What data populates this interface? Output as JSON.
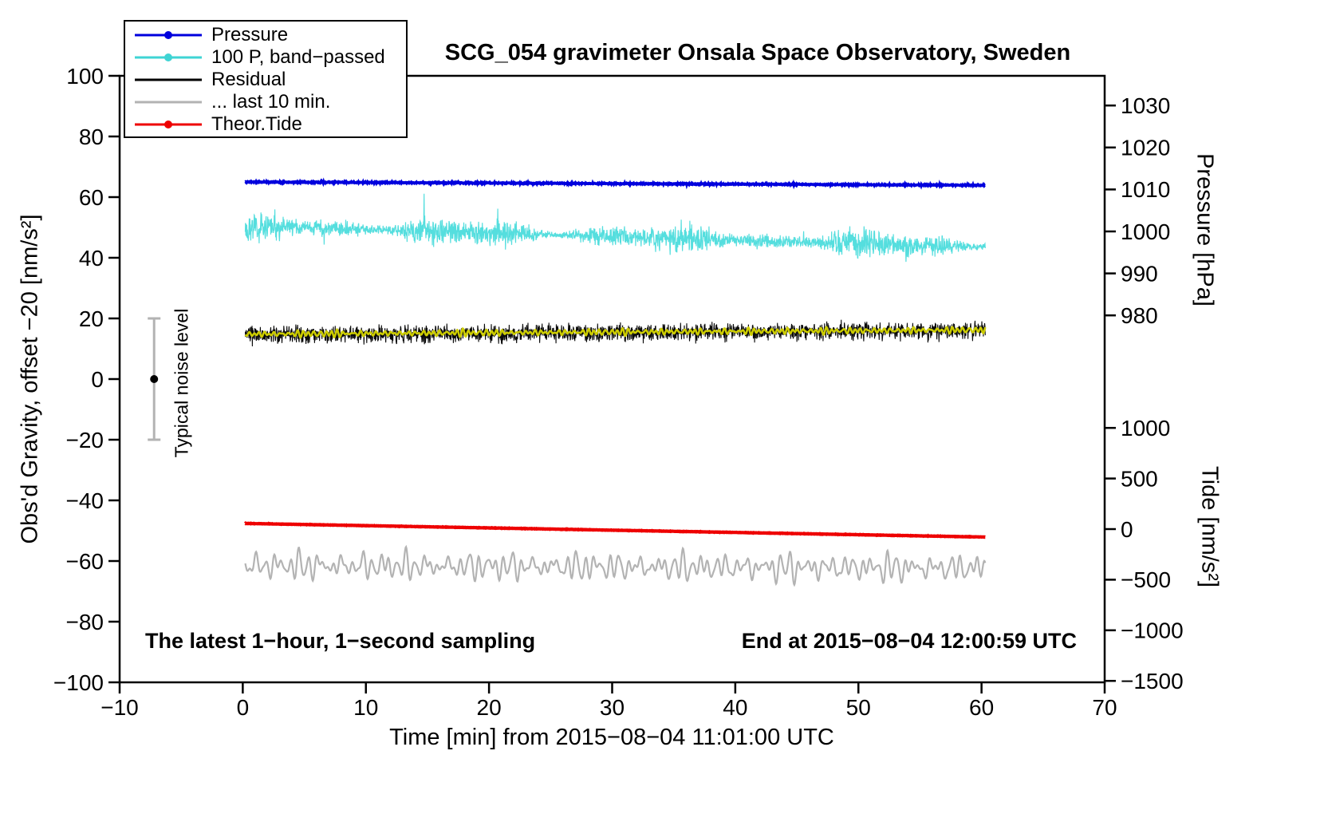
{
  "title": "SCG_054 gravimeter Onsala Space Observatory, Sweden",
  "annotations": {
    "sampling": "The latest 1−hour, 1−second sampling",
    "end_time": "End at 2015−08−04 12:00:59 UTC",
    "noise_label": "Typical noise level"
  },
  "axes": {
    "x": {
      "label": "Time [min] from 2015−08−04 11:01:00 UTC",
      "min": -10,
      "max": 70,
      "ticks": [
        -10,
        0,
        10,
        20,
        30,
        40,
        50,
        60,
        70
      ]
    },
    "y_left": {
      "label": "Obs'd Gravity, offset −20 [nm/s²]",
      "min": -100,
      "max": 100,
      "ticks": [
        -100,
        -80,
        -60,
        -40,
        -20,
        0,
        20,
        40,
        60,
        80,
        100
      ]
    },
    "y_right_pressure": {
      "label": "Pressure [hPa]",
      "ticks": [
        980,
        990,
        1000,
        1010,
        1020,
        1030
      ]
    },
    "y_right_tide": {
      "label": "Tide [nm/s²]",
      "ticks": [
        -1500,
        -1000,
        -500,
        0,
        500,
        1000
      ]
    }
  },
  "legend": [
    {
      "label": "Pressure",
      "color": "#0000dd",
      "marker": true
    },
    {
      "label": "100 P, band−passed",
      "color": "#3fd4d4",
      "marker": true
    },
    {
      "label": "Residual",
      "color": "#000000",
      "marker": false
    },
    {
      "label": "... last 10 min.",
      "color": "#b3b3b3",
      "marker": false
    },
    {
      "label": "Theor.Tide",
      "color": "#ee0000",
      "marker": true
    }
  ],
  "chart_data": {
    "type": "line",
    "title": "SCG_054 gravimeter Onsala Space Observatory, Sweden",
    "xlabel": "Time [min] from 2015-08-04 11:01:00 UTC",
    "x_range_min": [
      0,
      60.3
    ],
    "ylabel_left": "Obs'd Gravity, offset -20 [nm/s2]",
    "ylim_left": [
      -100,
      100
    ],
    "pressure_axis_hPa": [
      980,
      1030
    ],
    "tide_axis_nms2": [
      -1500,
      1000
    ],
    "grid": false,
    "legend_position": "top-left",
    "series": [
      {
        "name": "Pressure",
        "color": "#0000dd",
        "width": 3.5,
        "y_start": 65.0,
        "y_end": 63.9,
        "noise": 0.18,
        "kind": "hf",
        "seed": 11,
        "points_note": "approx 1011.5 to 1010.7 hPa, nearly constant"
      },
      {
        "name": "100 P, band-passed",
        "color": "#55dede",
        "width": 1.2,
        "y_start": 50.5,
        "y_end": 43.5,
        "noise": 3.1,
        "kind": "hf",
        "mod": true,
        "seed": 22,
        "points_note": "band-passed pressure x100, noisy, slowly declining"
      },
      {
        "name": "Residual",
        "color": "#0a0a0a",
        "width": 1.1,
        "y_start": 14.5,
        "y_end": 16.0,
        "noise": 2.9,
        "kind": "hf",
        "seed": 33,
        "points_note": "high-frequency residual around +15 nm/s2"
      },
      {
        "name": "Residual smoothed",
        "color": "#cccc00",
        "width": 2.6,
        "y_start": 14.8,
        "y_end": 16.2,
        "noise": 0.7,
        "kind": "smooth",
        "seed": 44,
        "points_note": "yellow running mean through residual"
      },
      {
        "name": "... last 10 min.",
        "color": "#b3b3b3",
        "width": 2.2,
        "y_start": -61.5,
        "y_end": -62.3,
        "noise": 3.0,
        "kind": "smooth",
        "seed": 55,
        "points_note": "smoothed wiggly trace near -62"
      },
      {
        "name": "Theor.Tide",
        "color": "#ee0000",
        "width": 4.2,
        "y_start": -47.6,
        "y_end": -52.1,
        "noise": 0.05,
        "kind": "hf",
        "seed": 66,
        "points_note": "theoretical tide, approx +40 to -80 nm/s2 on tide axis"
      }
    ],
    "noise_bar": {
      "x_min": -7.2,
      "y_center": 0,
      "y_half": 20,
      "color": "#b3b3b3"
    }
  }
}
